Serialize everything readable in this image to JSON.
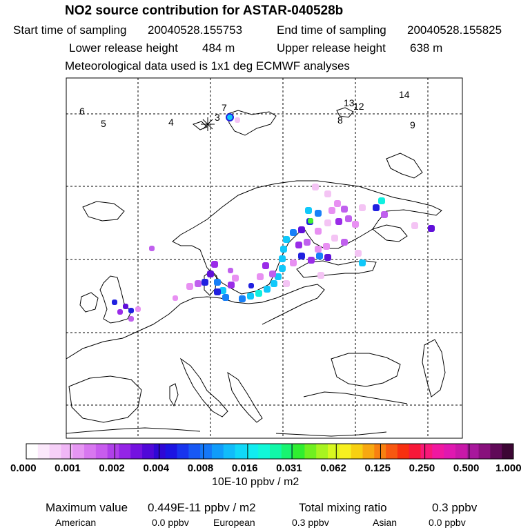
{
  "header": {
    "title": "NO2 source contribution for ASTAR-040528b",
    "start_label": "Start time of sampling",
    "start_value": "20040528.155753",
    "end_label": "End time of sampling",
    "end_value": "20040528.155825",
    "lower_label": "Lower release height",
    "lower_value": "484 m",
    "upper_label": "Upper release height",
    "upper_value": "638 m",
    "met_text": "Meteorological data used is 1x1 deg ECMWF analyses"
  },
  "map": {
    "track_labels": [
      "6",
      "5",
      "4",
      "7",
      "3",
      "13",
      "12",
      "8",
      "14",
      "9"
    ],
    "release_marker": "asterisk-cross",
    "colors": {
      "land_outline": "#000000",
      "grid": "#000000",
      "frame": "#000000"
    }
  },
  "colorbar": {
    "tick_labels": [
      "0.000",
      "0.001",
      "0.002",
      "0.004",
      "0.008",
      "0.016",
      "0.031",
      "0.062",
      "0.125",
      "0.250",
      "0.500",
      "1.000"
    ],
    "units": "10E-10 ppbv / m2",
    "colors": [
      "#ffffff",
      "#fbe8fb",
      "#f6d0f8",
      "#f0b6f6",
      "#e696f3",
      "#d877f0",
      "#c85cee",
      "#b040ea",
      "#9424e6",
      "#7412e0",
      "#5008d8",
      "#2f08d6",
      "#1c14e2",
      "#1834ee",
      "#1858f4",
      "#1478f8",
      "#109cfa",
      "#10bcfa",
      "#10d8f8",
      "#10ecf0",
      "#10f8d8",
      "#10f8a8",
      "#18f470",
      "#30ee30",
      "#70f020",
      "#a8f420",
      "#d8f820",
      "#f8f020",
      "#f8d010",
      "#f8a810",
      "#f88010",
      "#f85810",
      "#f83010",
      "#f81838",
      "#f81878",
      "#f018a0",
      "#e018b0",
      "#c818a8",
      "#a8189c",
      "#88107c",
      "#600a58",
      "#3c0634"
    ]
  },
  "footer": {
    "max_label": "Maximum value",
    "max_value": "0.449E-11 ppbv / m2",
    "total_label": "Total mixing ratio",
    "total_value": "0.3 ppbv",
    "american_label": "American",
    "american_value": "0.0 ppbv",
    "european_label": "European",
    "european_value": "0.3 ppbv",
    "asian_label": "Asian",
    "asian_value": "0.0 ppbv"
  },
  "plume": {
    "cells": [
      {
        "c": "#f4c4f4",
        "v": "0.0005"
      },
      {
        "c": "#e890f2",
        "v": "0.001"
      },
      {
        "c": "#c060ee",
        "v": "0.0015"
      },
      {
        "c": "#9a2ce8",
        "v": "0.002"
      },
      {
        "c": "#6010da",
        "v": "0.003"
      },
      {
        "c": "#2020e0",
        "v": "0.004"
      },
      {
        "c": "#1880f8",
        "v": "0.006"
      },
      {
        "c": "#10c8fa",
        "v": "0.008"
      },
      {
        "c": "#10f0e0",
        "v": "0.012"
      },
      {
        "c": "#40f030",
        "v": "0.02"
      }
    ]
  }
}
